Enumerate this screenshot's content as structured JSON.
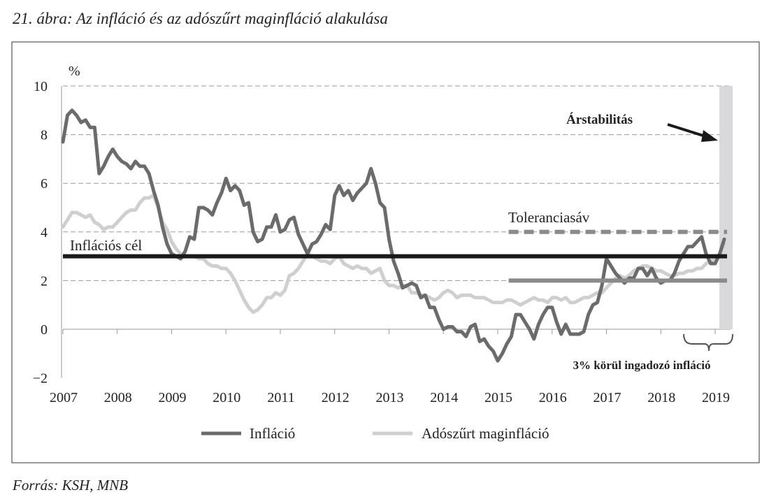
{
  "title": "21. ábra: Az infláció és az adószűrt maginfláció alakulása",
  "source": "Forrás: KSH, MNB",
  "chart_data": {
    "type": "line",
    "title": "21. ábra: Az infláció és az adószűrt maginfláció alakulása",
    "ylabel": "%",
    "xlabel": "",
    "ylim": [
      -2,
      10
    ],
    "yticks": [
      "−2",
      "0",
      "2",
      "4",
      "6",
      "8",
      "10"
    ],
    "ytick_values": [
      -2,
      0,
      2,
      4,
      6,
      8,
      10
    ],
    "xticks": [
      "2007",
      "2008",
      "2009",
      "2010",
      "2011",
      "2012",
      "2013",
      "2014",
      "2015",
      "2016",
      "2017",
      "2018",
      "2019"
    ],
    "x_start": "2007-01",
    "frequency": "monthly",
    "grid": "horizontal dashed",
    "legend_position": "bottom",
    "series": [
      {
        "name": "Infláció",
        "color": "#6b6b6b",
        "values": [
          7.7,
          8.8,
          9.0,
          8.8,
          8.5,
          8.6,
          8.3,
          8.3,
          6.4,
          6.7,
          7.1,
          7.4,
          7.1,
          6.9,
          6.8,
          6.6,
          6.9,
          6.7,
          6.7,
          6.4,
          5.7,
          5.1,
          4.2,
          3.5,
          3.1,
          3.0,
          2.9,
          3.2,
          3.8,
          3.7,
          5.0,
          5.0,
          4.9,
          4.7,
          5.2,
          5.6,
          6.2,
          5.7,
          5.9,
          5.7,
          5.1,
          5.2,
          4.0,
          3.6,
          3.7,
          4.2,
          4.2,
          4.7,
          4.0,
          4.1,
          4.5,
          4.6,
          3.9,
          3.5,
          3.1,
          3.5,
          3.6,
          3.9,
          4.3,
          4.1,
          5.5,
          5.9,
          5.5,
          5.7,
          5.3,
          5.6,
          5.8,
          6.0,
          6.6,
          6.0,
          5.2,
          5.0,
          3.7,
          2.8,
          2.3,
          1.7,
          1.8,
          1.9,
          1.8,
          1.3,
          1.4,
          0.9,
          0.9,
          0.4,
          0.0,
          0.1,
          0.1,
          -0.1,
          -0.1,
          -0.3,
          0.1,
          0.2,
          -0.5,
          -0.4,
          -0.7,
          -0.9,
          -1.3,
          -1.0,
          -0.6,
          -0.3,
          0.6,
          0.6,
          0.3,
          0.0,
          -0.4,
          0.2,
          0.6,
          0.9,
          0.9,
          0.3,
          -0.2,
          0.2,
          -0.2,
          -0.2,
          -0.2,
          -0.1,
          0.6,
          1.0,
          1.1,
          1.8,
          2.9,
          2.6,
          2.3,
          2.1,
          1.9,
          2.1,
          2.1,
          2.5,
          2.5,
          2.2,
          2.5,
          2.1,
          1.9,
          2.0,
          2.0,
          2.3,
          2.8,
          3.1,
          3.4,
          3.4,
          3.6,
          3.8,
          3.1,
          2.7,
          2.7,
          3.1,
          3.7
        ]
      },
      {
        "name": "Adószűrt maginfláció",
        "color": "#cfcfcf",
        "values": [
          4.2,
          4.5,
          4.8,
          4.8,
          4.7,
          4.6,
          4.7,
          4.4,
          4.3,
          4.1,
          4.2,
          4.2,
          4.4,
          4.6,
          4.8,
          4.9,
          4.9,
          5.2,
          5.4,
          5.4,
          5.5,
          5.0,
          4.4,
          4.1,
          3.6,
          3.3,
          3.1,
          3.0,
          3.0,
          3.0,
          2.9,
          2.9,
          2.7,
          2.6,
          2.6,
          2.5,
          2.5,
          2.3,
          2.0,
          1.6,
          1.2,
          0.9,
          0.7,
          0.8,
          1.0,
          1.3,
          1.3,
          1.5,
          1.4,
          1.6,
          2.2,
          2.3,
          2.5,
          2.8,
          3.1,
          3.0,
          2.9,
          2.8,
          2.8,
          2.7,
          2.9,
          3.0,
          2.7,
          2.6,
          2.5,
          2.6,
          2.5,
          2.5,
          2.3,
          2.4,
          2.5,
          2.0,
          1.8,
          1.8,
          1.7,
          1.8,
          1.8,
          1.5,
          1.5,
          1.4,
          1.4,
          1.3,
          1.2,
          1.3,
          1.5,
          1.6,
          1.5,
          1.3,
          1.4,
          1.4,
          1.4,
          1.3,
          1.3,
          1.3,
          1.2,
          1.1,
          1.1,
          1.1,
          1.2,
          1.2,
          1.1,
          1.0,
          1.1,
          1.2,
          1.3,
          1.2,
          1.2,
          1.1,
          1.3,
          1.3,
          1.2,
          1.3,
          1.1,
          1.1,
          1.2,
          1.3,
          1.3,
          1.4,
          1.5,
          1.5,
          1.7,
          1.9,
          2.1,
          2.2,
          2.1,
          2.2,
          2.4,
          2.5,
          2.6,
          2.6,
          2.5,
          2.4,
          2.4,
          2.3,
          2.2,
          2.2,
          2.3,
          2.3,
          2.4,
          2.4,
          2.5,
          2.5,
          2.7,
          2.8,
          2.9,
          3.1,
          3.5
        ]
      }
    ],
    "reference_lines": {
      "target": {
        "label": "Inflációs cél",
        "value": 3,
        "color": "#1a1a1a"
      },
      "tolerance": {
        "label": "Toleranciasáv",
        "upper": 4,
        "lower": 2,
        "from": 2015.2,
        "color": "#8a8a8a"
      }
    },
    "annotations": {
      "price_stability": "Árstabilitás",
      "fluctuation": "3% körül ingadozó infláció",
      "shade_color": "#d9d9db"
    }
  }
}
